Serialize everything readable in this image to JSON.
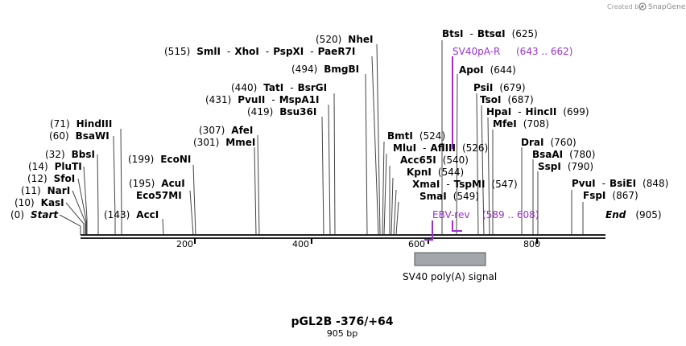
{
  "plasmid": {
    "name": "pGL2B -376/+64",
    "length_label": "905 bp",
    "length": 905
  },
  "credit": {
    "created_by": "Created by",
    "brand": "SnapGene"
  },
  "colors": {
    "primer": "#9b2fd4",
    "feature_fill": "#a3a7ab",
    "feature_stroke": "#555555",
    "line": "#444444"
  },
  "ticks": [
    "200",
    "400",
    "600",
    "800"
  ],
  "features": [
    {
      "name": "SV40 poly(A) signal"
    }
  ],
  "primers": [
    {
      "name": "SV40pA-R",
      "range": "(643 .. 662)"
    },
    {
      "name": "EBV-rev",
      "range": "(589 .. 608)"
    }
  ],
  "sites": [
    {
      "pos": "(0)",
      "name": "Start"
    },
    {
      "pos": "(10)",
      "name": "KasI"
    },
    {
      "pos": "(11)",
      "name": "NarI"
    },
    {
      "pos": "(12)",
      "name": "SfoI"
    },
    {
      "pos": "(14)",
      "name": "PluTI"
    },
    {
      "pos": "(32)",
      "name": "BbsI"
    },
    {
      "pos": "(60)",
      "name": "BsaWI"
    },
    {
      "pos": "(71)",
      "name": "HindIII"
    },
    {
      "pos": "(143)",
      "name": "AccI"
    },
    {
      "pos": "(195)",
      "name": "AcuI"
    },
    {
      "pos": "",
      "name": "Eco57MI"
    },
    {
      "pos": "(199)",
      "name": "EcoNI"
    },
    {
      "pos": "(301)",
      "name": "MmeI"
    },
    {
      "pos": "(307)",
      "name": "AfeI"
    },
    {
      "pos": "(419)",
      "name": "Bsu36I"
    },
    {
      "pos": "(431)",
      "name": "PvuII"
    },
    {
      "pos": "",
      "name": "MspA1I"
    },
    {
      "pos": "(440)",
      "name": "TatI"
    },
    {
      "pos": "",
      "name": "BsrGI"
    },
    {
      "pos": "(494)",
      "name": "BmgBI"
    },
    {
      "pos": "(515)",
      "name": "SmlI"
    },
    {
      "pos": "",
      "name": "XhoI"
    },
    {
      "pos": "",
      "name": "PspXI"
    },
    {
      "pos": "",
      "name": "PaeR7I"
    },
    {
      "pos": "(520)",
      "name": "NheI"
    },
    {
      "pos": "(524)",
      "name": "BmtI"
    },
    {
      "pos": "(526)",
      "name": "MluI"
    },
    {
      "pos": "",
      "name": "AflIII"
    },
    {
      "pos": "(540)",
      "name": "Acc65I"
    },
    {
      "pos": "(544)",
      "name": "KpnI"
    },
    {
      "pos": "(547)",
      "name": "XmaI"
    },
    {
      "pos": "",
      "name": "TspMI"
    },
    {
      "pos": "(549)",
      "name": "SmaI"
    },
    {
      "pos": "(625)",
      "name": "BtsI"
    },
    {
      "pos": "",
      "name": "BtsαI"
    },
    {
      "pos": "(644)",
      "name": "ApoI"
    },
    {
      "pos": "(679)",
      "name": "PsiI"
    },
    {
      "pos": "(687)",
      "name": "TsoI"
    },
    {
      "pos": "(699)",
      "name": "HpaI"
    },
    {
      "pos": "",
      "name": "HincII"
    },
    {
      "pos": "(708)",
      "name": "MfeI"
    },
    {
      "pos": "(760)",
      "name": "DraI"
    },
    {
      "pos": "(780)",
      "name": "BsaAI"
    },
    {
      "pos": "(790)",
      "name": "SspI"
    },
    {
      "pos": "(848)",
      "name": "PvuI"
    },
    {
      "pos": "",
      "name": "BsiEI"
    },
    {
      "pos": "(867)",
      "name": "FspI"
    },
    {
      "pos": "(905)",
      "name": "End"
    }
  ]
}
